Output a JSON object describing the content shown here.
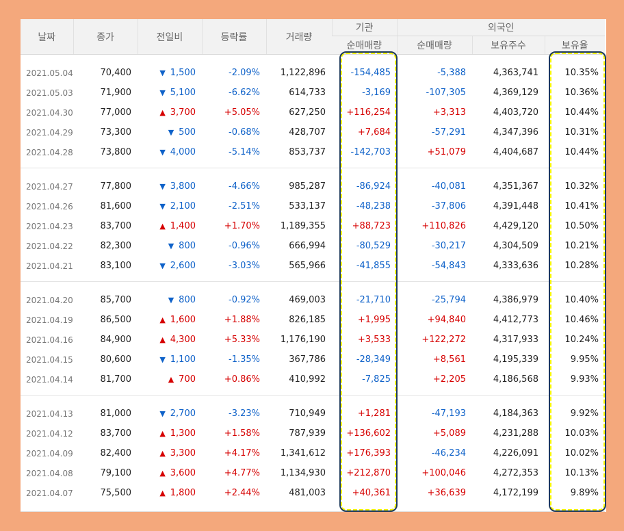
{
  "headers": {
    "date": "날짜",
    "close": "종가",
    "diff": "전일비",
    "rate": "등락률",
    "volume": "거래량",
    "institution": "기관",
    "foreign": "외국인",
    "inst_net": "순매매량",
    "foreign_net": "순매매량",
    "foreign_hold": "보유주수",
    "foreign_ratio": "보유율"
  },
  "colors": {
    "up": "#d60000",
    "down": "#0f62c9",
    "highlight": "#f5f500",
    "frame": "#f4a87c"
  },
  "groups": [
    [
      {
        "date": "2021.05.04",
        "close": "70,400",
        "dir": "down",
        "diff": "1,500",
        "rate": "-2.09%",
        "volume": "1,122,896",
        "inst": "-154,485",
        "fnet": "-5,388",
        "fhold": "4,363,741",
        "fratio": "10.35%"
      },
      {
        "date": "2021.05.03",
        "close": "71,900",
        "dir": "down",
        "diff": "5,100",
        "rate": "-6.62%",
        "volume": "614,733",
        "inst": "-3,169",
        "fnet": "-107,305",
        "fhold": "4,369,129",
        "fratio": "10.36%"
      },
      {
        "date": "2021.04.30",
        "close": "77,000",
        "dir": "up",
        "diff": "3,700",
        "rate": "+5.05%",
        "volume": "627,250",
        "inst": "+116,254",
        "fnet": "+3,313",
        "fhold": "4,403,720",
        "fratio": "10.44%"
      },
      {
        "date": "2021.04.29",
        "close": "73,300",
        "dir": "down",
        "diff": "500",
        "rate": "-0.68%",
        "volume": "428,707",
        "inst": "+7,684",
        "fnet": "-57,291",
        "fhold": "4,347,396",
        "fratio": "10.31%"
      },
      {
        "date": "2021.04.28",
        "close": "73,800",
        "dir": "down",
        "diff": "4,000",
        "rate": "-5.14%",
        "volume": "853,737",
        "inst": "-142,703",
        "fnet": "+51,079",
        "fhold": "4,404,687",
        "fratio": "10.44%"
      }
    ],
    [
      {
        "date": "2021.04.27",
        "close": "77,800",
        "dir": "down",
        "diff": "3,800",
        "rate": "-4.66%",
        "volume": "985,287",
        "inst": "-86,924",
        "fnet": "-40,081",
        "fhold": "4,351,367",
        "fratio": "10.32%"
      },
      {
        "date": "2021.04.26",
        "close": "81,600",
        "dir": "down",
        "diff": "2,100",
        "rate": "-2.51%",
        "volume": "533,137",
        "inst": "-48,238",
        "fnet": "-37,806",
        "fhold": "4,391,448",
        "fratio": "10.41%"
      },
      {
        "date": "2021.04.23",
        "close": "83,700",
        "dir": "up",
        "diff": "1,400",
        "rate": "+1.70%",
        "volume": "1,189,355",
        "inst": "+88,723",
        "fnet": "+110,826",
        "fhold": "4,429,120",
        "fratio": "10.50%"
      },
      {
        "date": "2021.04.22",
        "close": "82,300",
        "dir": "down",
        "diff": "800",
        "rate": "-0.96%",
        "volume": "666,994",
        "inst": "-80,529",
        "fnet": "-30,217",
        "fhold": "4,304,509",
        "fratio": "10.21%"
      },
      {
        "date": "2021.04.21",
        "close": "83,100",
        "dir": "down",
        "diff": "2,600",
        "rate": "-3.03%",
        "volume": "565,966",
        "inst": "-41,855",
        "fnet": "-54,843",
        "fhold": "4,333,636",
        "fratio": "10.28%"
      }
    ],
    [
      {
        "date": "2021.04.20",
        "close": "85,700",
        "dir": "down",
        "diff": "800",
        "rate": "-0.92%",
        "volume": "469,003",
        "inst": "-21,710",
        "fnet": "-25,794",
        "fhold": "4,386,979",
        "fratio": "10.40%"
      },
      {
        "date": "2021.04.19",
        "close": "86,500",
        "dir": "up",
        "diff": "1,600",
        "rate": "+1.88%",
        "volume": "826,185",
        "inst": "+1,995",
        "fnet": "+94,840",
        "fhold": "4,412,773",
        "fratio": "10.46%"
      },
      {
        "date": "2021.04.16",
        "close": "84,900",
        "dir": "up",
        "diff": "4,300",
        "rate": "+5.33%",
        "volume": "1,176,190",
        "inst": "+3,533",
        "fnet": "+122,272",
        "fhold": "4,317,933",
        "fratio": "10.24%"
      },
      {
        "date": "2021.04.15",
        "close": "80,600",
        "dir": "down",
        "diff": "1,100",
        "rate": "-1.35%",
        "volume": "367,786",
        "inst": "-28,349",
        "fnet": "+8,561",
        "fhold": "4,195,339",
        "fratio": "9.95%"
      },
      {
        "date": "2021.04.14",
        "close": "81,700",
        "dir": "up",
        "diff": "700",
        "rate": "+0.86%",
        "volume": "410,992",
        "inst": "-7,825",
        "fnet": "+2,205",
        "fhold": "4,186,568",
        "fratio": "9.93%"
      }
    ],
    [
      {
        "date": "2021.04.13",
        "close": "81,000",
        "dir": "down",
        "diff": "2,700",
        "rate": "-3.23%",
        "volume": "710,949",
        "inst": "+1,281",
        "fnet": "-47,193",
        "fhold": "4,184,363",
        "fratio": "9.92%"
      },
      {
        "date": "2021.04.12",
        "close": "83,700",
        "dir": "up",
        "diff": "1,300",
        "rate": "+1.58%",
        "volume": "787,939",
        "inst": "+136,602",
        "fnet": "+5,089",
        "fhold": "4,231,288",
        "fratio": "10.03%"
      },
      {
        "date": "2021.04.09",
        "close": "82,400",
        "dir": "up",
        "diff": "3,300",
        "rate": "+4.17%",
        "volume": "1,341,612",
        "inst": "+176,393",
        "fnet": "-46,234",
        "fhold": "4,226,091",
        "fratio": "10.02%"
      },
      {
        "date": "2021.04.08",
        "close": "79,100",
        "dir": "up",
        "diff": "3,600",
        "rate": "+4.77%",
        "volume": "1,134,930",
        "inst": "+212,870",
        "fnet": "+100,046",
        "fhold": "4,272,353",
        "fratio": "10.13%"
      },
      {
        "date": "2021.04.07",
        "close": "75,500",
        "dir": "up",
        "diff": "1,800",
        "rate": "+2.44%",
        "volume": "481,003",
        "inst": "+40,361",
        "fnet": "+36,639",
        "fhold": "4,172,199",
        "fratio": "9.89%"
      }
    ]
  ]
}
